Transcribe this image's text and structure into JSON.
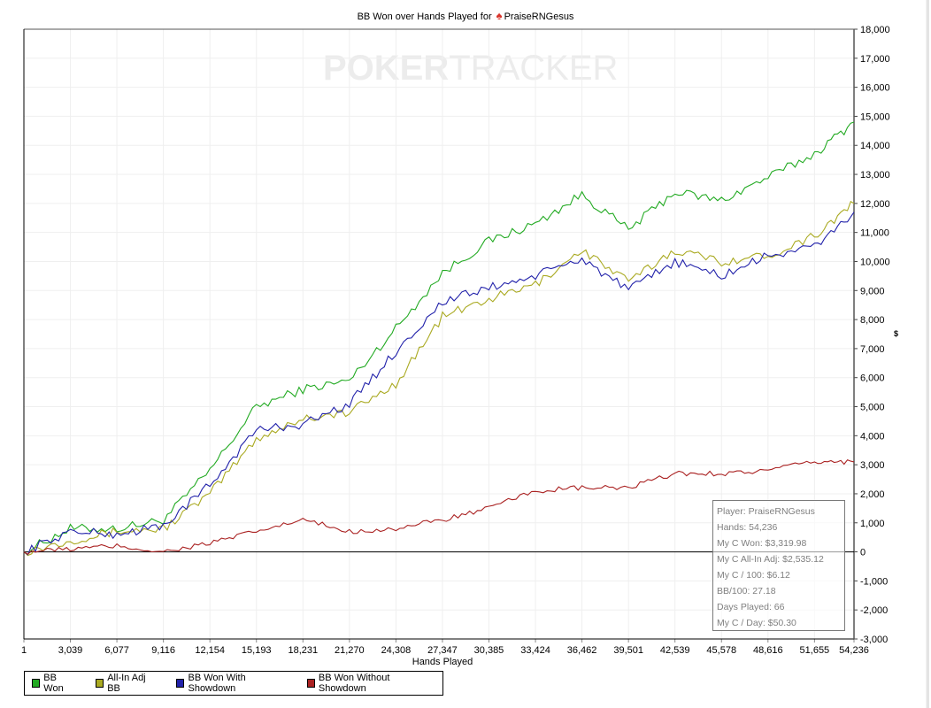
{
  "title": {
    "prefix": "BB Won over Hands Played for",
    "icon": "spade-icon",
    "icon_glyph": "♠",
    "player": "PraiseRNGesus"
  },
  "watermark": {
    "bold": "POKER",
    "light": "TRACKER"
  },
  "axes": {
    "xlabel": "Hands Played",
    "ylabel": "$",
    "x_ticks": [
      "1",
      "3,039",
      "6,077",
      "9,116",
      "12,154",
      "15,193",
      "18,231",
      "21,270",
      "24,308",
      "27,347",
      "30,385",
      "33,424",
      "36,462",
      "39,501",
      "42,539",
      "45,578",
      "48,616",
      "51,655",
      "54,236"
    ],
    "y_ticks": [
      "18,000",
      "17,000",
      "16,000",
      "15,000",
      "14,000",
      "13,000",
      "12,000",
      "11,000",
      "10,000",
      "9,000",
      "8,000",
      "7,000",
      "6,000",
      "5,000",
      "4,000",
      "3,000",
      "2,000",
      "1,000",
      "0",
      "-1,000",
      "-2,000",
      "-3,000"
    ]
  },
  "legend": [
    {
      "label": "BB Won",
      "color": "#22aa22"
    },
    {
      "label": "All-In Adj BB",
      "color": "#aaaa22"
    },
    {
      "label": "BB Won With Showdown",
      "color": "#2222aa"
    },
    {
      "label": "BB Won Without Showdown",
      "color": "#aa2222"
    }
  ],
  "stats": {
    "player": "Player: PraiseRNGesus",
    "hands": "Hands: 54,236",
    "won": "My C Won: $3,319.98",
    "allin_adj": "My C All-In Adj: $2,535.12",
    "per_100": "My C / 100: $6.12",
    "bb_100": "BB/100: 27.18",
    "days_played": "Days Played: 66",
    "per_day": "My C / Day: $50.30"
  },
  "chart_data": {
    "type": "line",
    "title": "BB Won over Hands Played for PraiseRNGesus",
    "xlabel": "Hands Played",
    "ylabel": "$",
    "xlim": [
      1,
      54236
    ],
    "ylim": [
      -3000,
      18000
    ],
    "grid": true,
    "legend_position": "bottom",
    "x": [
      1,
      3039,
      6077,
      9116,
      12154,
      15193,
      18231,
      21270,
      24308,
      27347,
      30385,
      33424,
      36462,
      39501,
      42539,
      45578,
      48616,
      51655,
      54236
    ],
    "series": [
      {
        "name": "BB Won",
        "color": "#22aa22",
        "values": [
          0,
          800,
          800,
          1100,
          2800,
          5000,
          5600,
          5900,
          7700,
          9600,
          10700,
          11300,
          12300,
          11100,
          12400,
          12100,
          12900,
          13700,
          14800
        ]
      },
      {
        "name": "All-In Adj BB",
        "color": "#aaaa22",
        "values": [
          0,
          400,
          700,
          800,
          2000,
          3900,
          4600,
          4800,
          5800,
          8100,
          8700,
          9200,
          10400,
          9300,
          10400,
          10000,
          10200,
          10900,
          12000
        ]
      },
      {
        "name": "BB Won With Showdown",
        "color": "#2222aa",
        "values": [
          0,
          700,
          600,
          900,
          2300,
          4200,
          4400,
          5100,
          6900,
          8600,
          9100,
          9500,
          10100,
          9000,
          10000,
          9500,
          10200,
          10500,
          11700
        ]
      },
      {
        "name": "BB Won Without Showdown",
        "color": "#aa2222",
        "values": [
          0,
          100,
          200,
          0,
          300,
          700,
          1100,
          700,
          800,
          1100,
          1500,
          2100,
          2200,
          2200,
          2700,
          2700,
          2800,
          3100,
          3100
        ]
      }
    ]
  }
}
